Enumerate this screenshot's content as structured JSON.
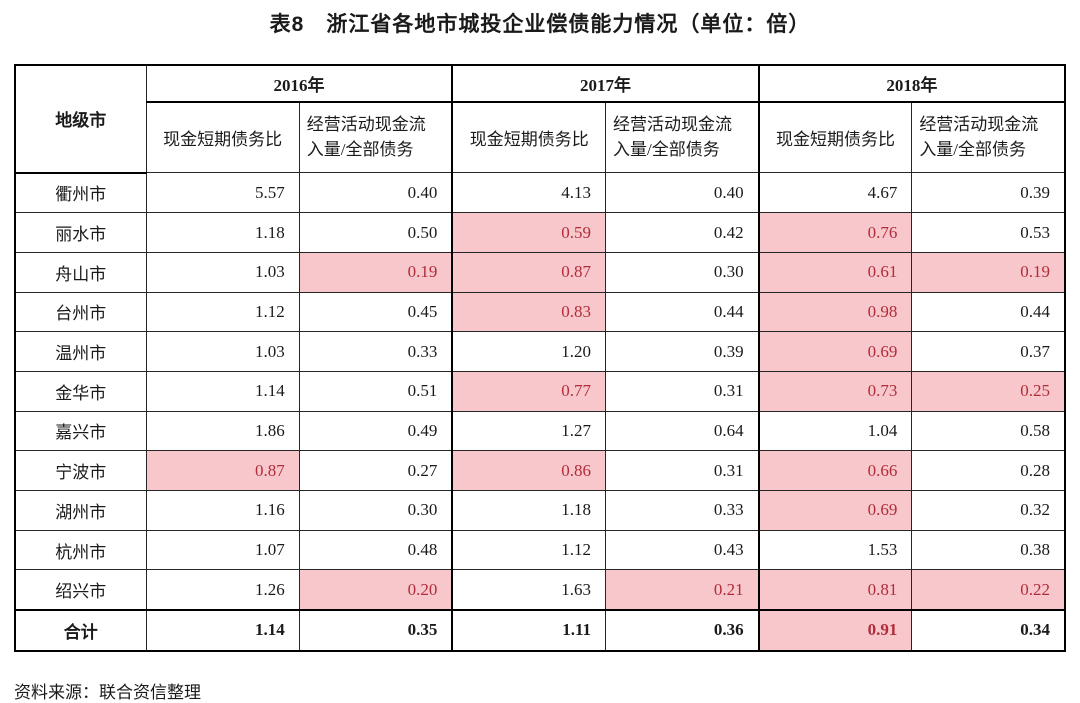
{
  "title": "表8　浙江省各地市城投企业偿债能力情况（单位：倍）",
  "source": "资料来源：联合资信整理",
  "colors": {
    "highlight_bg": "#f8c7cc",
    "highlight_text": "#b02c3a",
    "border": "#000000"
  },
  "table": {
    "corner_header": "地级市",
    "year_headers": [
      "2016年",
      "2017年",
      "2018年"
    ],
    "sub_headers": [
      "现金短期债务比",
      "经营活动现金流入量/全部债务"
    ],
    "rows": [
      {
        "city": "衢州市",
        "values": [
          "5.57",
          "0.40",
          "4.13",
          "0.40",
          "4.67",
          "0.39"
        ],
        "highlight": [
          false,
          false,
          false,
          false,
          false,
          false
        ],
        "is_total": false
      },
      {
        "city": "丽水市",
        "values": [
          "1.18",
          "0.50",
          "0.59",
          "0.42",
          "0.76",
          "0.53"
        ],
        "highlight": [
          false,
          false,
          true,
          false,
          true,
          false
        ],
        "is_total": false
      },
      {
        "city": "舟山市",
        "values": [
          "1.03",
          "0.19",
          "0.87",
          "0.30",
          "0.61",
          "0.19"
        ],
        "highlight": [
          false,
          true,
          true,
          false,
          true,
          true
        ],
        "is_total": false
      },
      {
        "city": "台州市",
        "values": [
          "1.12",
          "0.45",
          "0.83",
          "0.44",
          "0.98",
          "0.44"
        ],
        "highlight": [
          false,
          false,
          true,
          false,
          true,
          false
        ],
        "is_total": false
      },
      {
        "city": "温州市",
        "values": [
          "1.03",
          "0.33",
          "1.20",
          "0.39",
          "0.69",
          "0.37"
        ],
        "highlight": [
          false,
          false,
          false,
          false,
          true,
          false
        ],
        "is_total": false
      },
      {
        "city": "金华市",
        "values": [
          "1.14",
          "0.51",
          "0.77",
          "0.31",
          "0.73",
          "0.25"
        ],
        "highlight": [
          false,
          false,
          true,
          false,
          true,
          true
        ],
        "is_total": false
      },
      {
        "city": "嘉兴市",
        "values": [
          "1.86",
          "0.49",
          "1.27",
          "0.64",
          "1.04",
          "0.58"
        ],
        "highlight": [
          false,
          false,
          false,
          false,
          false,
          false
        ],
        "is_total": false
      },
      {
        "city": "宁波市",
        "values": [
          "0.87",
          "0.27",
          "0.86",
          "0.31",
          "0.66",
          "0.28"
        ],
        "highlight": [
          true,
          false,
          true,
          false,
          true,
          false
        ],
        "is_total": false
      },
      {
        "city": "湖州市",
        "values": [
          "1.16",
          "0.30",
          "1.18",
          "0.33",
          "0.69",
          "0.32"
        ],
        "highlight": [
          false,
          false,
          false,
          false,
          true,
          false
        ],
        "is_total": false
      },
      {
        "city": "杭州市",
        "values": [
          "1.07",
          "0.48",
          "1.12",
          "0.43",
          "1.53",
          "0.38"
        ],
        "highlight": [
          false,
          false,
          false,
          false,
          false,
          false
        ],
        "is_total": false
      },
      {
        "city": "绍兴市",
        "values": [
          "1.26",
          "0.20",
          "1.63",
          "0.21",
          "0.81",
          "0.22"
        ],
        "highlight": [
          false,
          true,
          false,
          true,
          true,
          true
        ],
        "is_total": false
      },
      {
        "city": "合计",
        "values": [
          "1.14",
          "0.35",
          "1.11",
          "0.36",
          "0.91",
          "0.34"
        ],
        "highlight": [
          false,
          false,
          false,
          false,
          true,
          false
        ],
        "is_total": true
      }
    ]
  }
}
